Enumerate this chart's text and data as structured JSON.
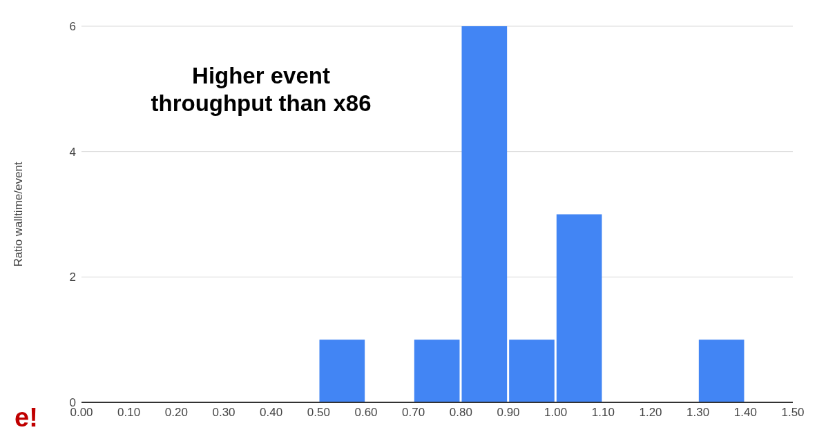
{
  "chart_data": {
    "type": "histogram",
    "bins": [
      0,
      0.1,
      0.2,
      0.3,
      0.4,
      0.5,
      0.6,
      0.7,
      0.8,
      0.9,
      1.0,
      1.1,
      1.2,
      1.3,
      1.4,
      1.5
    ],
    "values": [
      0,
      0,
      0,
      0,
      0,
      1,
      0,
      1,
      6,
      1,
      3,
      0,
      0,
      1,
      0
    ],
    "color": "#4285f4",
    "ylabel": "Ratio walltime/event",
    "xlim": [
      0,
      1.5
    ],
    "xticks": [
      {
        "value": 0,
        "label": "0.00"
      },
      {
        "value": 0.1,
        "label": "0.10"
      },
      {
        "value": 0.2,
        "label": "0.20"
      },
      {
        "value": 0.3,
        "label": "0.30"
      },
      {
        "value": 0.4,
        "label": "0.40"
      },
      {
        "value": 0.5,
        "label": "0.50"
      },
      {
        "value": 0.6,
        "label": "0.60"
      },
      {
        "value": 0.7,
        "label": "0.70"
      },
      {
        "value": 0.8,
        "label": "0.80"
      },
      {
        "value": 0.9,
        "label": "0.90"
      },
      {
        "value": 1.0,
        "label": "1.00"
      },
      {
        "value": 1.1,
        "label": "1.10"
      },
      {
        "value": 1.2,
        "label": "1.20"
      },
      {
        "value": 1.3,
        "label": "1.30"
      },
      {
        "value": 1.4,
        "label": "1.40"
      },
      {
        "value": 1.5,
        "label": "1.50"
      }
    ],
    "ylim": [
      0,
      6
    ],
    "yticks": [
      0,
      2,
      4,
      6
    ],
    "grid": "y",
    "annotations": [
      "Higher event throughput than x86",
      "e!"
    ]
  }
}
